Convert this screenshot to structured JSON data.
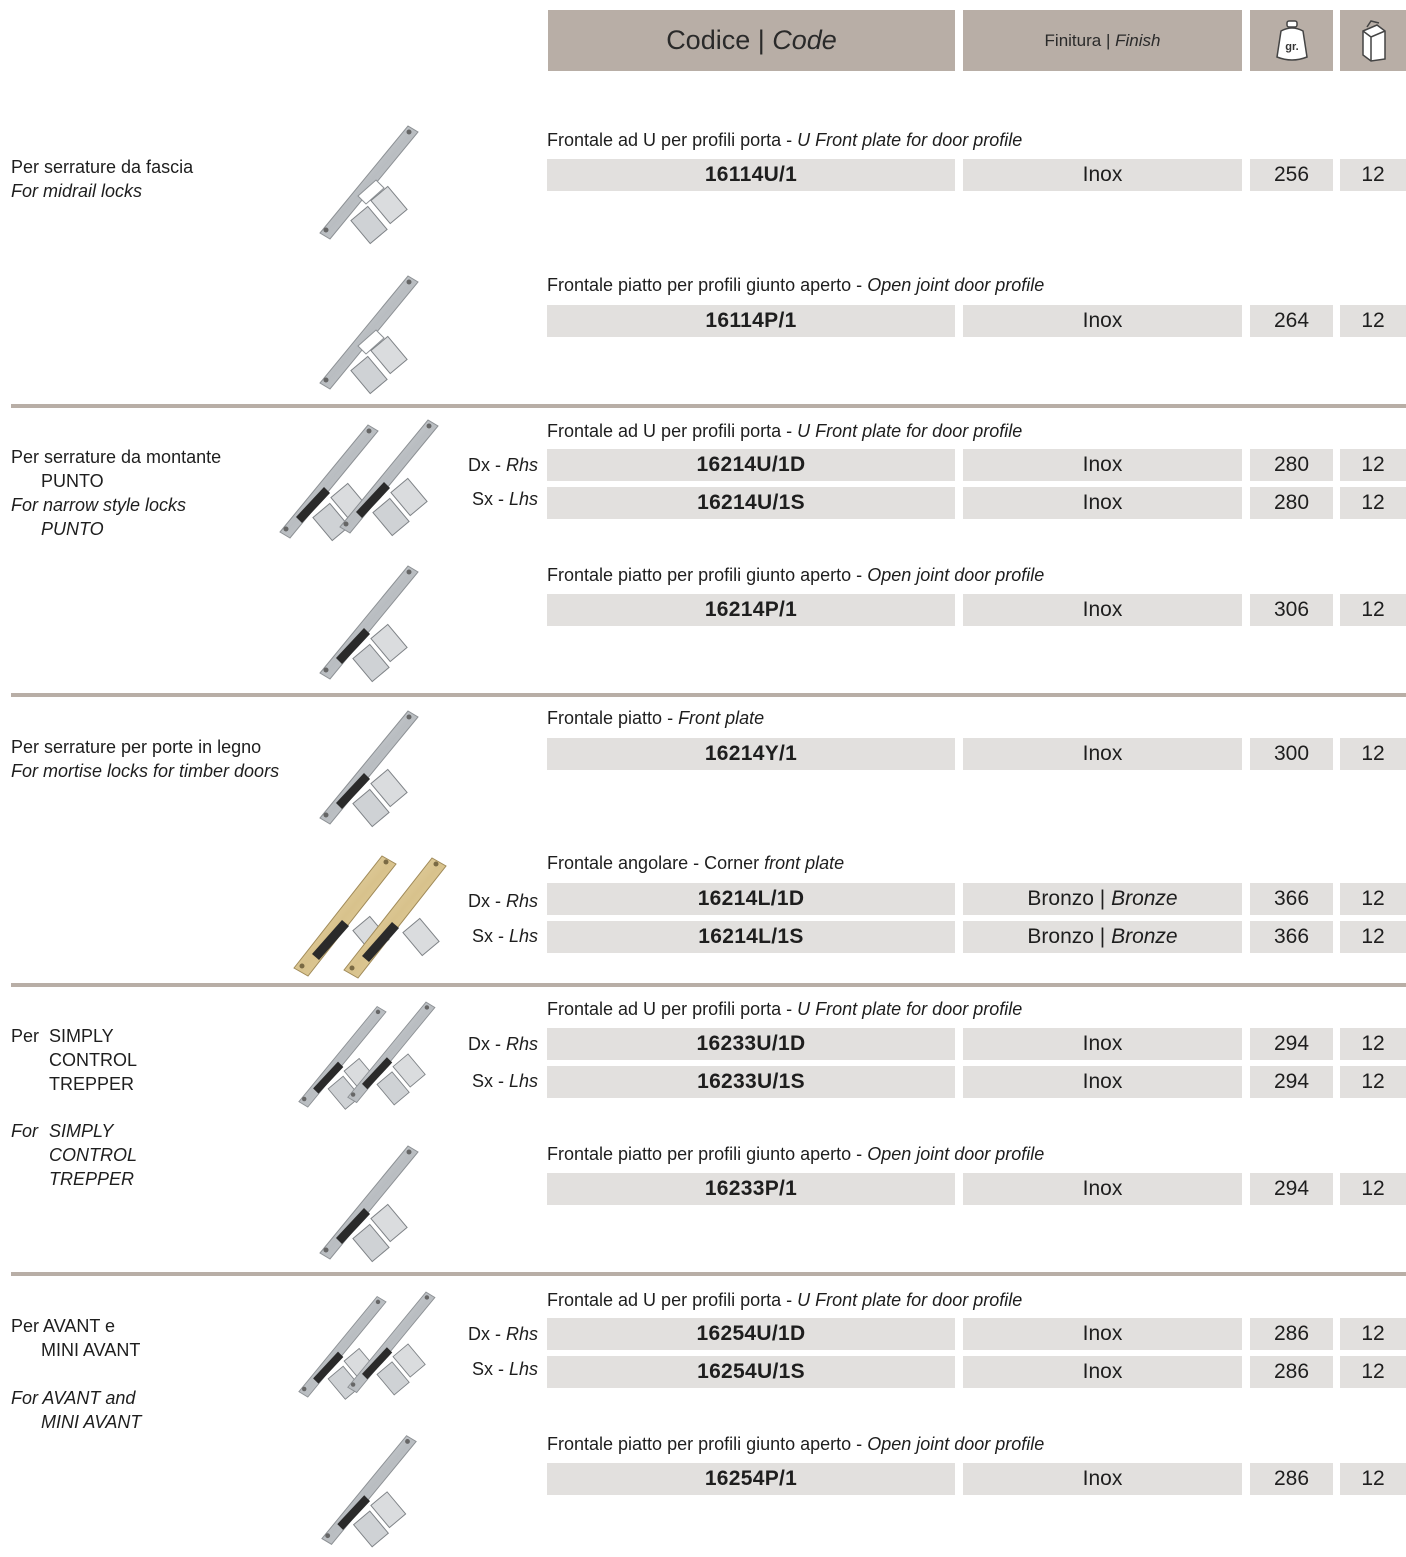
{
  "header": {
    "code_main": "Codice",
    "code_sep": " | ",
    "code_en": "Code",
    "finish_main": "Finitura",
    "finish_sep": " | ",
    "finish_en": "Finish",
    "weight_icon_label": "gr."
  },
  "categories": [
    {
      "it": "Per serrature da fascia",
      "en": "For midrail locks"
    },
    {
      "it": "Per serrature da montante",
      "it2": "PUNTO",
      "en": "For narrow style locks",
      "en2": "PUNTO"
    },
    {
      "it": "Per serrature per porte in legno",
      "en": "For mortise locks for timber doors"
    },
    {
      "it_prefix": "Per",
      "it_lines": [
        "SIMPLY",
        "CONTROL",
        "TREPPER"
      ],
      "en_prefix": "For",
      "en_lines": [
        "SIMPLY",
        "CONTROL",
        "TREPPER"
      ]
    },
    {
      "it": "Per AVANT e",
      "it2": "MINI AVANT",
      "en": "For AVANT and",
      "en2": "MINI AVANT"
    }
  ],
  "descriptions": {
    "u_it": "Frontale ad U per profili porta - ",
    "u_en": "U Front plate for door profile",
    "p_it": "Frontale piatto per profili giunto aperto - ",
    "p_en": "Open joint door profile",
    "y_it": "Frontale piatto - ",
    "y_en": "Front plate",
    "l_it": "Frontale angolare - Corner ",
    "l_en": "front plate"
  },
  "sides": {
    "dx_it": "Dx - ",
    "dx_en": "Rhs",
    "sx_it": "Sx - ",
    "sx_en": "Lhs"
  },
  "finishes": {
    "inox": "Inox",
    "bronzo_it": "Bronzo",
    "bronzo_sep": " | ",
    "bronzo_en": "Bronze"
  },
  "rows": [
    {
      "code": "16114U/1",
      "finish": "Inox",
      "weight": "256",
      "pack": "12"
    },
    {
      "code": "16114P/1",
      "finish": "Inox",
      "weight": "264",
      "pack": "12"
    },
    {
      "code": "16214U/1D",
      "finish": "Inox",
      "weight": "280",
      "pack": "12"
    },
    {
      "code": "16214U/1S",
      "finish": "Inox",
      "weight": "280",
      "pack": "12"
    },
    {
      "code": "16214P/1",
      "finish": "Inox",
      "weight": "306",
      "pack": "12"
    },
    {
      "code": "16214Y/1",
      "finish": "Inox",
      "weight": "300",
      "pack": "12"
    },
    {
      "code": "16214L/1D",
      "weight": "366",
      "pack": "12"
    },
    {
      "code": "16214L/1S",
      "weight": "366",
      "pack": "12"
    },
    {
      "code": "16233U/1D",
      "finish": "Inox",
      "weight": "294",
      "pack": "12"
    },
    {
      "code": "16233U/1S",
      "finish": "Inox",
      "weight": "294",
      "pack": "12"
    },
    {
      "code": "16233P/1",
      "finish": "Inox",
      "weight": "294",
      "pack": "12"
    },
    {
      "code": "16254U/1D",
      "finish": "Inox",
      "weight": "286",
      "pack": "12"
    },
    {
      "code": "16254U/1S",
      "finish": "Inox",
      "weight": "286",
      "pack": "12"
    },
    {
      "code": "16254P/1",
      "finish": "Inox",
      "weight": "286",
      "pack": "12"
    }
  ],
  "colors": {
    "header_bg": "#b8aea6",
    "cell_bg": "#e2e0de",
    "separator": "#b8aea6",
    "steel": "#c4c8cc",
    "bronze": "#dcc89a"
  }
}
